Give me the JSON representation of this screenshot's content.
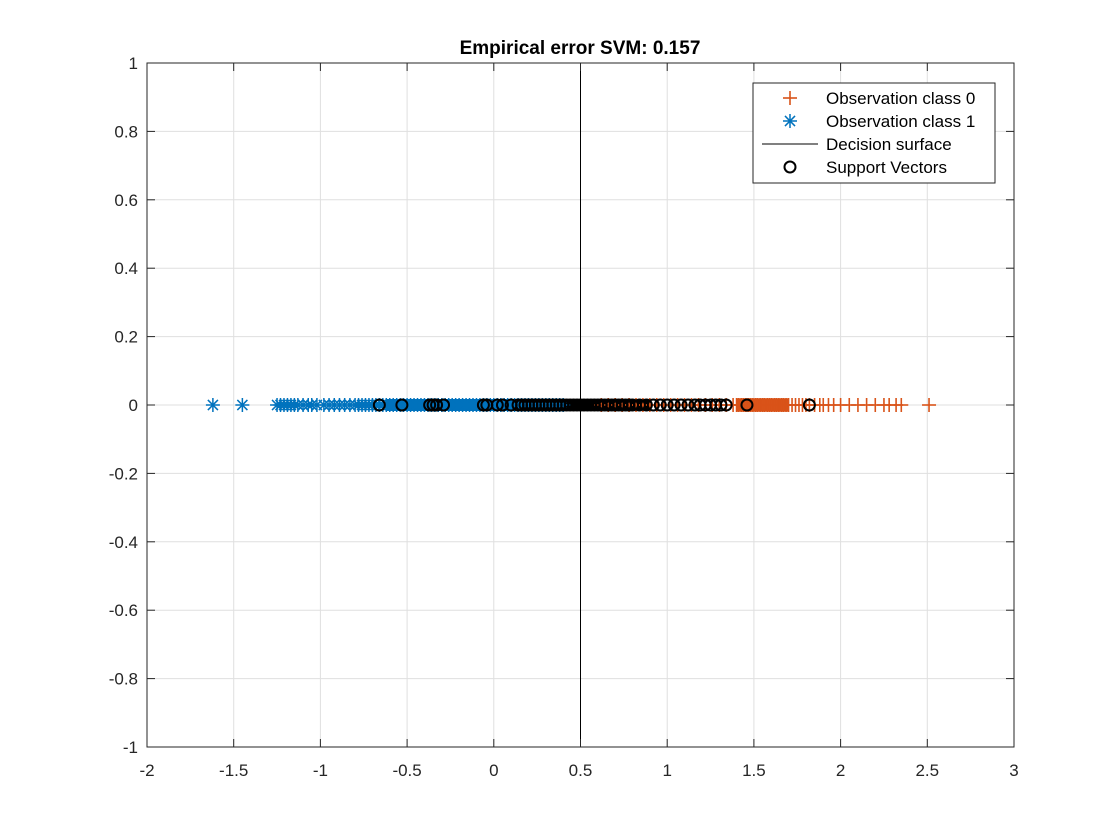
{
  "chart_data": {
    "type": "scatter",
    "title": "Empirical error SVM: 0.157",
    "xlabel": "",
    "ylabel": "",
    "xlim": [
      -2,
      3
    ],
    "ylim": [
      -1,
      1
    ],
    "xticks": [
      -2,
      -1.5,
      -1,
      -0.5,
      0,
      0.5,
      1,
      1.5,
      2,
      2.5,
      3
    ],
    "yticks": [
      -1,
      -0.8,
      -0.6,
      -0.4,
      -0.2,
      0,
      0.2,
      0.4,
      0.6,
      0.8,
      1
    ],
    "grid": true,
    "legend_position": "top-right",
    "decision_surface_x": 0.5,
    "series": [
      {
        "name": "Observation class 0",
        "marker": "plus",
        "color": "#D95319",
        "x": [
          0.62,
          0.66,
          0.7,
          0.74,
          0.78,
          0.82,
          0.86,
          0.9,
          0.94,
          0.98,
          1.02,
          1.06,
          1.1,
          1.14,
          1.18,
          1.22,
          1.26,
          1.3,
          1.34,
          1.38,
          1.4,
          1.41,
          1.42,
          1.43,
          1.44,
          1.45,
          1.46,
          1.47,
          1.48,
          1.49,
          1.5,
          1.51,
          1.52,
          1.53,
          1.54,
          1.55,
          1.56,
          1.57,
          1.58,
          1.59,
          1.6,
          1.61,
          1.62,
          1.63,
          1.64,
          1.65,
          1.66,
          1.67,
          1.68,
          1.69,
          1.7,
          1.72,
          1.74,
          1.76,
          1.78,
          1.8,
          1.82,
          1.85,
          1.88,
          1.9,
          1.93,
          1.96,
          2.0,
          2.05,
          2.1,
          2.15,
          2.2,
          2.25,
          2.28,
          2.32,
          2.35,
          2.51
        ]
      },
      {
        "name": "Observation class 1",
        "marker": "asterisk",
        "color": "#0072BD",
        "x": [
          -1.62,
          -1.45,
          -1.25,
          -1.23,
          -1.21,
          -1.19,
          -1.17,
          -1.15,
          -1.13,
          -1.1,
          -1.07,
          -1.05,
          -1.02,
          -0.98,
          -0.95,
          -0.92,
          -0.89,
          -0.86,
          -0.83,
          -0.8,
          -0.78,
          -0.76,
          -0.74,
          -0.72,
          -0.7,
          -0.68,
          -0.66,
          -0.64,
          -0.62,
          -0.6,
          -0.58,
          -0.56,
          -0.54,
          -0.52,
          -0.5,
          -0.48,
          -0.46,
          -0.44,
          -0.42,
          -0.4,
          -0.38,
          -0.36,
          -0.34,
          -0.32,
          -0.3,
          -0.28,
          -0.26,
          -0.24,
          -0.22,
          -0.2,
          -0.18,
          -0.16,
          -0.14,
          -0.12,
          -0.1,
          -0.08,
          -0.06,
          -0.04,
          -0.02,
          0.0,
          0.02,
          0.04,
          0.06,
          0.08,
          0.1,
          0.12,
          0.14,
          0.16,
          0.18,
          0.2,
          0.22,
          0.24,
          0.26,
          0.28,
          0.3,
          0.32,
          0.34,
          0.36,
          0.38,
          0.4
        ]
      },
      {
        "name": "Decision surface",
        "marker": "line",
        "color": "#000000",
        "x": [
          0.5,
          0.5
        ],
        "y": [
          -1,
          1
        ]
      },
      {
        "name": "Support Vectors",
        "marker": "circle",
        "color": "#000000",
        "x": [
          -0.66,
          -0.53,
          -0.37,
          -0.35,
          -0.33,
          -0.29,
          -0.06,
          -0.04,
          0.02,
          0.05,
          0.1,
          0.14,
          0.16,
          0.18,
          0.2,
          0.22,
          0.24,
          0.26,
          0.28,
          0.3,
          0.32,
          0.34,
          0.36,
          0.38,
          0.4,
          0.42,
          0.44,
          0.46,
          0.48,
          0.5,
          0.52,
          0.54,
          0.56,
          0.58,
          0.6,
          0.62,
          0.64,
          0.66,
          0.68,
          0.7,
          0.72,
          0.74,
          0.76,
          0.78,
          0.8,
          0.84,
          0.88,
          0.92,
          0.96,
          1.0,
          1.04,
          1.08,
          1.12,
          1.16,
          1.19,
          1.22,
          1.25,
          1.28,
          1.31,
          1.34,
          1.46,
          1.82
        ]
      }
    ]
  }
}
